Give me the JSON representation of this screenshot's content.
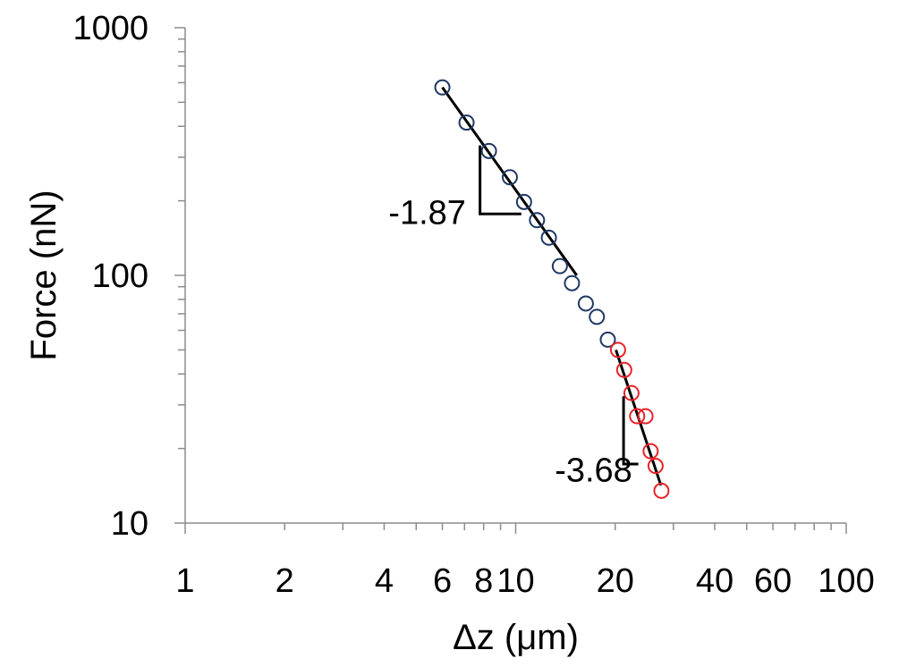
{
  "chart_data": {
    "type": "scatter",
    "xlabel": "Δz (μm)",
    "ylabel": "Force (nN)",
    "xscale": "log",
    "yscale": "log",
    "xlim": [
      1,
      100
    ],
    "ylim": [
      10,
      1000
    ],
    "grid": false,
    "x_tick_labels": [
      {
        "value": 1,
        "label": "1"
      },
      {
        "value": 2,
        "label": "2"
      },
      {
        "value": 4,
        "label": "4"
      },
      {
        "value": 6,
        "label": "6"
      },
      {
        "value": 8,
        "label": "8"
      },
      {
        "value": 10,
        "label": "10"
      },
      {
        "value": 20,
        "label": "20"
      },
      {
        "value": 40,
        "label": "40"
      },
      {
        "value": 60,
        "label": "60"
      },
      {
        "value": 100,
        "label": "100"
      }
    ],
    "y_tick_labels": [
      {
        "value": 10,
        "label": "10"
      },
      {
        "value": 100,
        "label": "100"
      },
      {
        "value": 1000,
        "label": "1000"
      }
    ],
    "series": [
      {
        "color": "#1f3864",
        "marker": "open-circle",
        "x": [
          6.0,
          7.1,
          8.3,
          9.6,
          10.6,
          11.6,
          12.6,
          13.6,
          14.8,
          16.3,
          17.6,
          19.0
        ],
        "y": [
          574,
          414,
          318,
          249,
          198,
          167,
          142,
          109,
          93,
          77,
          68,
          55
        ]
      },
      {
        "color": "#e8232a",
        "marker": "open-circle",
        "x": [
          20.4,
          21.3,
          22.4,
          23.3,
          24.7,
          25.6,
          26.5,
          27.6
        ],
        "y": [
          50,
          41.5,
          33.5,
          27,
          27,
          19.5,
          17,
          13.5
        ]
      }
    ],
    "fits": [
      {
        "slope": -1.87,
        "x": [
          6.0,
          15.3
        ],
        "y": [
          574,
          100
        ],
        "color": "#000000"
      },
      {
        "slope": -3.68,
        "x": [
          20.1,
          27.5
        ],
        "y": [
          50,
          14.2
        ],
        "color": "#000000"
      }
    ],
    "annotations": [
      {
        "text": "-1.87",
        "x": 5.4,
        "y": 180
      },
      {
        "text": "-3.68",
        "x": 17.2,
        "y": 16.4
      }
    ],
    "slope_triangles": [
      {
        "corner": [
          7.8,
          177
        ],
        "top": [
          7.8,
          335
        ],
        "right": [
          10.4,
          177
        ]
      },
      {
        "corner": [
          21.2,
          17.3
        ],
        "top": [
          21.2,
          32.5
        ],
        "right": [
          23.5,
          17.3
        ]
      }
    ]
  }
}
